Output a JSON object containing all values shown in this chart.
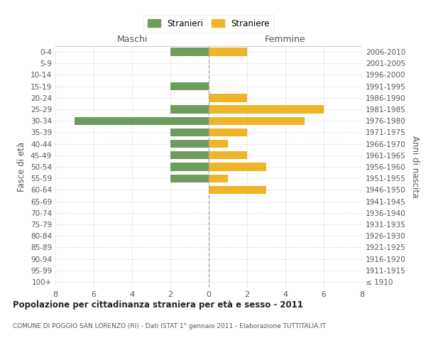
{
  "age_groups": [
    "100+",
    "95-99",
    "90-94",
    "85-89",
    "80-84",
    "75-79",
    "70-74",
    "65-69",
    "60-64",
    "55-59",
    "50-54",
    "45-49",
    "40-44",
    "35-39",
    "30-34",
    "25-29",
    "20-24",
    "15-19",
    "10-14",
    "5-9",
    "0-4"
  ],
  "birth_years": [
    "≤ 1910",
    "1911-1915",
    "1916-1920",
    "1921-1925",
    "1926-1930",
    "1931-1935",
    "1936-1940",
    "1941-1945",
    "1946-1950",
    "1951-1955",
    "1956-1960",
    "1961-1965",
    "1966-1970",
    "1971-1975",
    "1976-1980",
    "1981-1985",
    "1986-1990",
    "1991-1995",
    "1996-2000",
    "2001-2005",
    "2006-2010"
  ],
  "maschi_stranieri": [
    0,
    0,
    0,
    0,
    0,
    0,
    0,
    0,
    0,
    2,
    2,
    2,
    2,
    2,
    7,
    2,
    0,
    2,
    0,
    0,
    2
  ],
  "femmine_straniere": [
    0,
    0,
    0,
    0,
    0,
    0,
    0,
    0,
    3,
    1,
    3,
    2,
    1,
    2,
    5,
    6,
    2,
    0,
    0,
    0,
    2
  ],
  "male_color": "#6e9b5e",
  "female_color": "#f0b429",
  "xlim": 8,
  "title": "Popolazione per cittadinanza straniera per età e sesso - 2011",
  "subtitle": "COMUNE DI POGGIO SAN LORENZO (RI) - Dati ISTAT 1° gennaio 2011 - Elaborazione TUTTITALIA.IT",
  "legend_male": "Stranieri",
  "legend_female": "Straniere",
  "ylabel_left": "Fasce di età",
  "ylabel_right": "Anni di nascita",
  "header_left": "Maschi",
  "header_right": "Femmine",
  "bg_color": "#ffffff",
  "grid_color": "#cccccc",
  "bar_height": 0.7
}
